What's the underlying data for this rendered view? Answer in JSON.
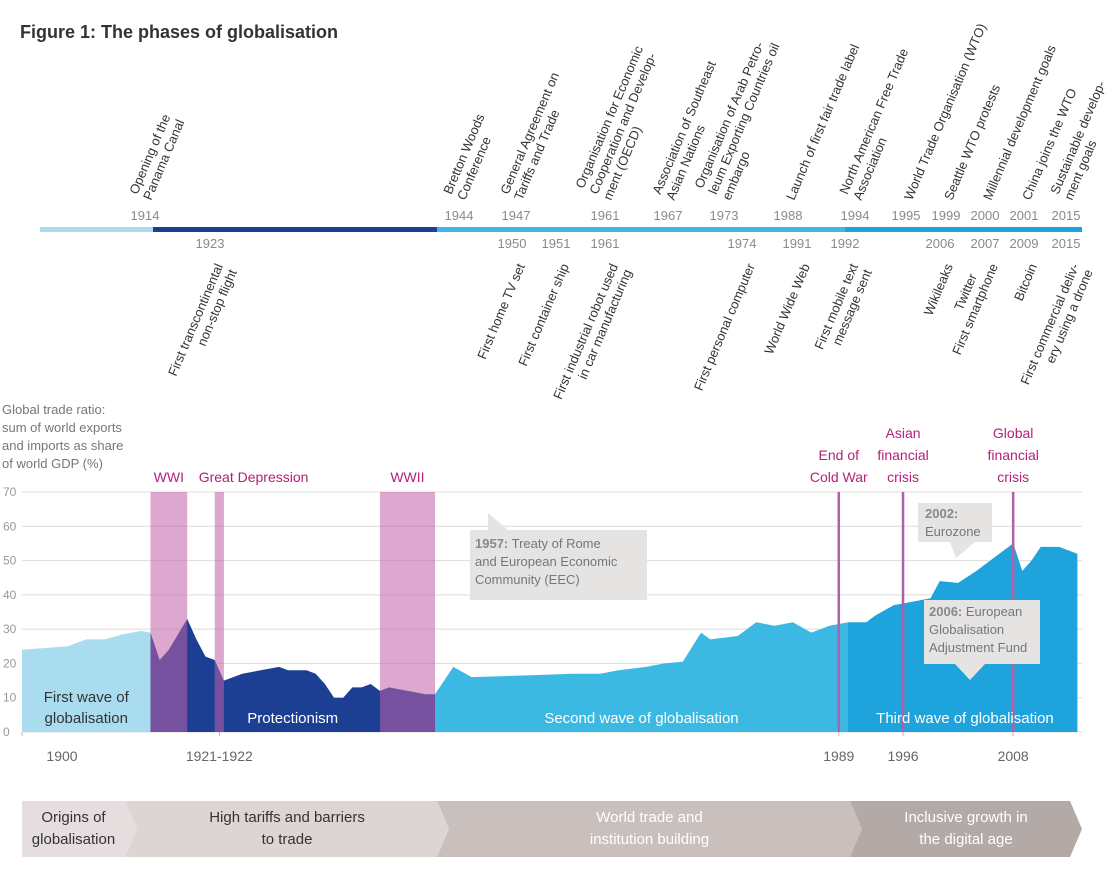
{
  "title": "Figure 1: The phases of globalisation",
  "timeline": {
    "top": [
      {
        "year": 1914,
        "lines": [
          "Opening of the",
          "Panama Canal"
        ]
      },
      {
        "year": 1944,
        "lines": [
          "Bretton Woods",
          "Conference"
        ]
      },
      {
        "year": 1947,
        "lines": [
          "General Agreement on",
          "Tariffs and Trade"
        ]
      },
      {
        "year": 1961,
        "lines": [
          "Organisation for Economic",
          "Cooperation and Develop-",
          "ment (OECD)"
        ]
      },
      {
        "year": 1967,
        "lines": [
          "Association of Southeast",
          "Asian Nations"
        ]
      },
      {
        "year": 1973,
        "lines": [
          "Organisation of Arab Petro-",
          "leum Exporting Countries oil",
          "embargo"
        ]
      },
      {
        "year": 1988,
        "lines": [
          "Launch of first fair trade label"
        ]
      },
      {
        "year": 1994,
        "lines": [
          "North American Free Trade",
          "Association"
        ]
      },
      {
        "year": 1995,
        "lines": [
          "World Trade Organisation (WTO)"
        ]
      },
      {
        "year": 1999,
        "lines": [
          "Seattle WTO protests"
        ]
      },
      {
        "year": 2000,
        "lines": [
          "Millennial development goals"
        ]
      },
      {
        "year": 2001,
        "lines": [
          "China joins the WTO"
        ]
      },
      {
        "year": 2015,
        "lines": [
          "Sustainable develop-",
          "ment goals"
        ]
      }
    ],
    "bottom": [
      {
        "year": 1923,
        "lines": [
          "First transcontinental",
          "non-stop flight"
        ]
      },
      {
        "year": 1950,
        "lines": [
          "First home TV set"
        ]
      },
      {
        "year": 1951,
        "lines": [
          "First container ship"
        ]
      },
      {
        "year": 1961,
        "lines": [
          "First industrial robot used",
          "in car manufacturing"
        ]
      },
      {
        "year": 1974,
        "lines": [
          "First personal computer"
        ]
      },
      {
        "year": 1991,
        "lines": [
          "World Wide Web"
        ]
      },
      {
        "year": 1992,
        "lines": [
          "First mobile text",
          "message sent"
        ]
      },
      {
        "year": 2006,
        "lines": [
          "Wikileaks",
          "Twitter"
        ]
      },
      {
        "year": 2007,
        "lines": [
          "First smartphone"
        ]
      },
      {
        "year": 2009,
        "lines": [
          "Bitcoin"
        ]
      },
      {
        "year": 2015,
        "lines": [
          "First commercial deliv-",
          "ery using a drone"
        ]
      }
    ]
  },
  "chart_data": {
    "type": "area",
    "y_label": [
      "Global trade ratio:",
      "sum of world exports",
      "and imports as share",
      "of world GDP (%)"
    ],
    "x": [
      1900,
      1905,
      1907,
      1909,
      1911,
      1913,
      1914,
      1915,
      1916,
      1918,
      1919,
      1920,
      1921,
      1922,
      1924,
      1926,
      1928,
      1929,
      1931,
      1932,
      1933,
      1934,
      1935,
      1936,
      1937,
      1938,
      1939,
      1940,
      1942,
      1944,
      1945,
      1947,
      1949,
      1955,
      1960,
      1963,
      1965,
      1968,
      1970,
      1972,
      1974,
      1975,
      1978,
      1980,
      1982,
      1984,
      1986,
      1988,
      1990,
      1992,
      1993,
      1995,
      1997,
      1999,
      2000,
      2002,
      2004,
      2006,
      2007,
      2008,
      2009,
      2010,
      2011,
      2013,
      2015
    ],
    "values": [
      24,
      25,
      27,
      27,
      28.5,
      29.5,
      29,
      21,
      24,
      33,
      27,
      22,
      21,
      15,
      17,
      18,
      19,
      18,
      18,
      17,
      14,
      10,
      10,
      13,
      13,
      14,
      12,
      13,
      12,
      11,
      11,
      19,
      16,
      16.5,
      17,
      17,
      18,
      19,
      20,
      20.5,
      29,
      27,
      28,
      32,
      31,
      32,
      29,
      31,
      32,
      32,
      34,
      37,
      38,
      39,
      44,
      43.5,
      47,
      51,
      53,
      55,
      47,
      50,
      54,
      54,
      52
    ],
    "xlim": [
      1900,
      2015.5
    ],
    "xticks": [
      1900,
      {
        "value": 1921.5,
        "label": "1921-1922"
      },
      1989,
      1996,
      2008
    ],
    "ylim": [
      0,
      70
    ],
    "yticks": [
      0,
      10,
      20,
      30,
      40,
      50,
      60,
      70
    ],
    "grid": true,
    "periods": [
      {
        "lines": [
          "First wave of",
          "globalisation"
        ],
        "start": 1900,
        "end": 1914,
        "color": "#aadcf0"
      },
      {
        "lines": [
          "Protectionism"
        ],
        "start": 1914,
        "end": 1945,
        "color": "#1c3f94"
      },
      {
        "lines": [
          "Second wave of globalisation"
        ],
        "start": 1945,
        "end": 1990,
        "color": "#3cb9e2"
      },
      {
        "lines": [
          "Third wave of globalisation"
        ],
        "start": 1990,
        "end": 2015.5,
        "color": "#1ea3dc"
      }
    ],
    "events": [
      {
        "name": "WWI",
        "start": 1914,
        "end": 1918
      },
      {
        "name": "Great Depression",
        "start": 1921,
        "end": 1922
      },
      {
        "name": "WWII",
        "start": 1939,
        "end": 1945
      }
    ],
    "markers": [
      {
        "lines": [
          "End of",
          "Cold War"
        ],
        "year": 1989
      },
      {
        "lines": [
          "Asian",
          "financial",
          "crisis"
        ],
        "year": 1996
      },
      {
        "lines": [
          "Global",
          "financial",
          "crisis"
        ],
        "year": 2008
      }
    ],
    "annotations": [
      {
        "year": "1957:",
        "lines": [
          "Treaty of Rome",
          "and European Economic",
          "Community (EEC)"
        ]
      },
      {
        "year": "2002:",
        "lines": [
          "Eurozone"
        ]
      },
      {
        "year": "2006:",
        "lines": [
          "European",
          "Globalisation",
          "Adjustment Fund"
        ]
      }
    ]
  },
  "phases": [
    {
      "lines": [
        "Origins of",
        "globalisation"
      ]
    },
    {
      "lines": [
        "High tariffs and barriers",
        "to trade"
      ]
    },
    {
      "lines": [
        "World trade and",
        "institution building"
      ]
    },
    {
      "lines": [
        "Inclusive growth in",
        "the digital age"
      ]
    }
  ]
}
